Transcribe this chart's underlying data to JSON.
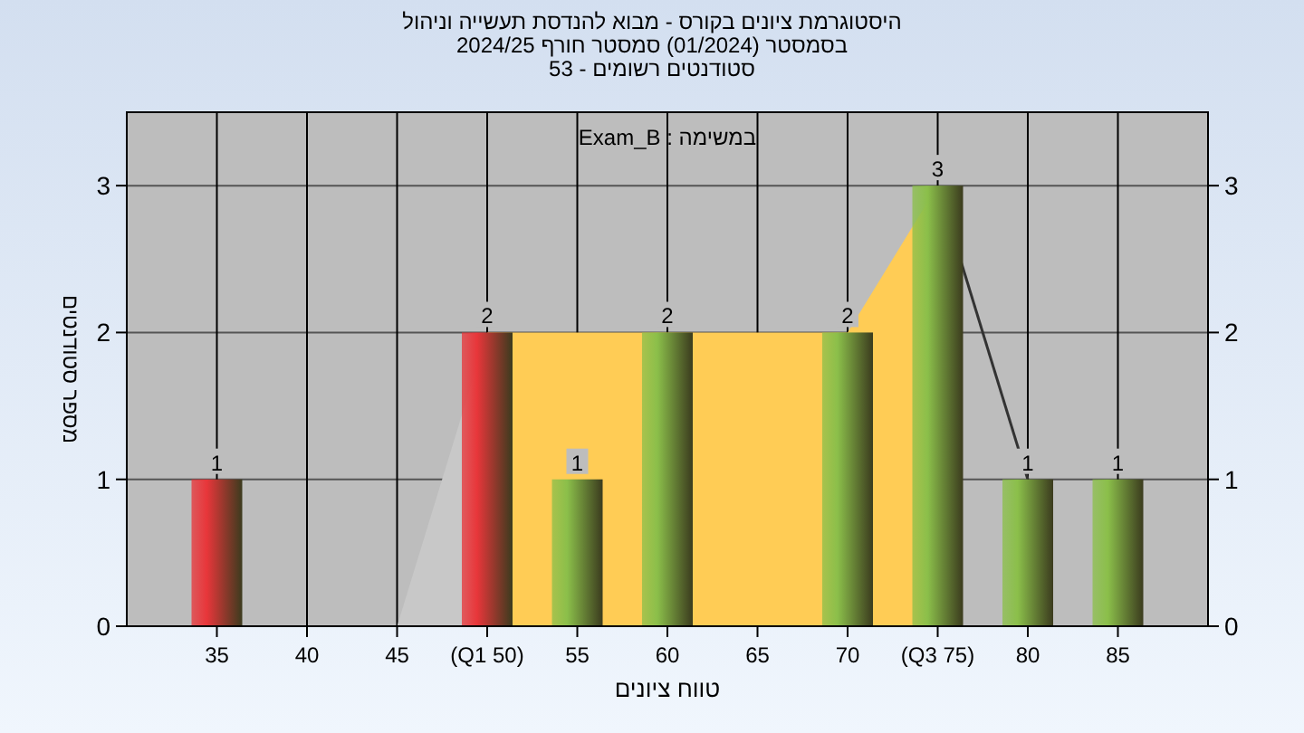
{
  "chart_data": {
    "type": "bar",
    "title": "היסטוגרמת ציונים בקורס - מבוא להנדסת תעשייה וניהול",
    "subtitle": "בסמסטר  (01/2024)  סמסטר חורף 2024/25\nסטודנטים רשומים - 53",
    "xlabel": "טווח ציונים",
    "ylabel": "מספר סטודנטים",
    "annotations": [
      "Exam_B : במשימה"
    ],
    "categories": [
      "35",
      "40",
      "45",
      "(Q1 50)",
      "55",
      "60",
      "65",
      "70",
      "(Q3 75)",
      "80",
      "85"
    ],
    "series": [
      {
        "type": "area",
        "color": "#c8c8c8",
        "values": [
          null,
          null,
          0,
          2,
          null,
          null,
          null,
          null,
          null,
          null,
          null
        ]
      },
      {
        "type": "area",
        "color": "#ffcc55",
        "values": [
          null,
          null,
          null,
          2,
          2,
          2,
          2,
          2,
          3,
          null,
          null
        ]
      },
      {
        "type": "line",
        "color": "#333333",
        "values": [
          null,
          null,
          null,
          null,
          null,
          null,
          null,
          null,
          3,
          1,
          null
        ]
      },
      {
        "colors": [
          "#e8363a",
          "#8bbf4a",
          "#8bbf4a",
          "#e8363a",
          "#8bbf4a",
          "#8bbf4a",
          "#8bbf4a",
          "#8bbf4a",
          "#8bbf4a",
          "#8bbf4a",
          "#8bbf4a"
        ],
        "values": [
          1,
          0,
          0,
          2,
          1,
          2,
          0,
          2,
          3,
          1,
          1
        ],
        "value_labels": [
          "1",
          null,
          null,
          "2",
          "1",
          "2",
          null,
          "2",
          "3",
          "1",
          "1"
        ]
      }
    ],
    "ylim": [
      0,
      3.5
    ],
    "yticks": [
      0,
      1,
      2,
      3
    ],
    "y2lim": [
      0,
      3.5
    ],
    "y2ticks": [
      0,
      1,
      2,
      3
    ],
    "grid": true,
    "legend": false
  }
}
